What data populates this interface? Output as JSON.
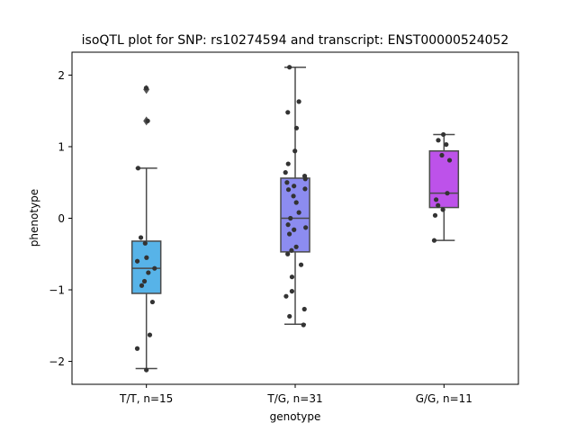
{
  "chart_data": {
    "type": "box",
    "title": "isoQTL plot for SNP: rs10274594 and transcript: ENST00000524052",
    "xlabel": "genotype",
    "ylabel": "phenotype",
    "ylim": [
      -2.32,
      2.32
    ],
    "yticks": [
      -2,
      -1,
      0,
      1,
      2
    ],
    "grid": false,
    "groups": [
      {
        "label": "T/T, n=15",
        "color": "#57b3e8",
        "q1": -1.05,
        "median": -0.7,
        "q3": -0.32,
        "whisker_low": -2.1,
        "whisker_high": 0.7,
        "outliers": [
          1.8,
          1.36
        ],
        "points": [
          1.82,
          1.36,
          0.7,
          -0.27,
          -0.35,
          -0.55,
          -0.6,
          -0.7,
          -0.76,
          -0.88,
          -0.94,
          -1.17,
          -1.63,
          -1.82,
          -2.12
        ]
      },
      {
        "label": "T/G, n=31",
        "color": "#8c8cf0",
        "q1": -0.47,
        "median": 0.0,
        "q3": 0.56,
        "whisker_low": -1.48,
        "whisker_high": 2.11,
        "outliers": [],
        "points": [
          2.11,
          1.63,
          1.48,
          1.26,
          0.94,
          0.76,
          0.64,
          0.59,
          0.55,
          0.5,
          0.45,
          0.41,
          0.4,
          0.31,
          0.22,
          0.08,
          0.0,
          -0.09,
          -0.13,
          -0.16,
          -0.22,
          -0.4,
          -0.45,
          -0.5,
          -0.65,
          -0.82,
          -1.02,
          -1.09,
          -1.27,
          -1.37,
          -1.49
        ]
      },
      {
        "label": "G/G, n=11",
        "color": "#bd52ea",
        "q1": 0.15,
        "median": 0.35,
        "q3": 0.94,
        "whisker_low": -0.31,
        "whisker_high": 1.17,
        "outliers": [],
        "points": [
          1.17,
          1.09,
          1.03,
          0.88,
          0.81,
          0.35,
          0.26,
          0.18,
          0.12,
          0.04,
          -0.31
        ]
      }
    ]
  }
}
